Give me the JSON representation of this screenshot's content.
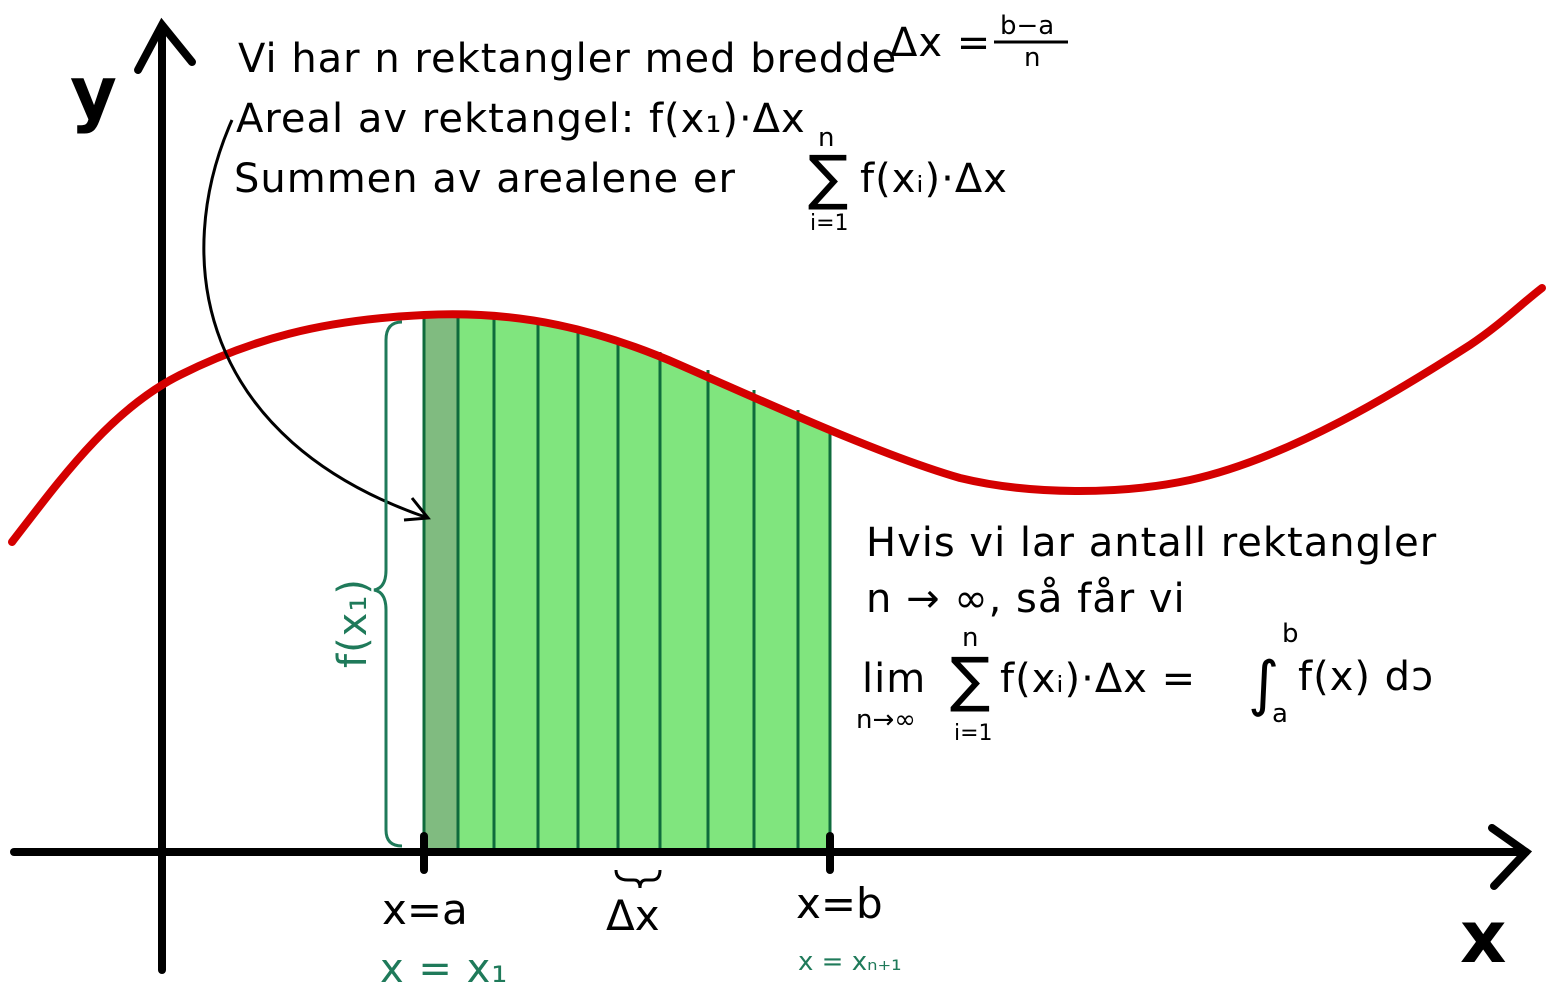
{
  "labels": {
    "y_axis": "y",
    "x_axis": "x",
    "line1_text": "Vi har n rektangler med bredde",
    "line1_dx": "Δx =",
    "line1_frac_num": "b−a",
    "line1_frac_den": "n",
    "line2": "Areal av rektangel: f(x₁)·Δx",
    "line3_text": "Summen av arealene er",
    "line3_sum": "∑",
    "line3_top": "n",
    "line3_bottom": "i=1",
    "line3_term": "f(xᵢ)·Δx",
    "right1": "Hvis vi lar antall rektangler",
    "right2": "n → ∞, så får vi",
    "lim": "lim",
    "lim_sub": "n→∞",
    "sum": "∑",
    "sum_top": "n",
    "sum_bottom": "i=1",
    "sum_term": "f(xᵢ)·Δx =",
    "integral": "∫",
    "int_top": "b",
    "int_bottom": "a",
    "int_term": "f(x) dↄ",
    "fx1": "f(x₁)",
    "xa": "x=a",
    "xb": "x=b",
    "dx": "Δx",
    "x1": "x = x₁",
    "xn1": "x = xₙ₊₁"
  },
  "colors": {
    "curve": "#d40000",
    "fill": "#80e57e",
    "first_rect": "#80bb80",
    "rect_lines": "#0f6b3c",
    "teal_text": "#1f7a5a",
    "ink": "#000000"
  },
  "rectangles": {
    "count": 10
  }
}
